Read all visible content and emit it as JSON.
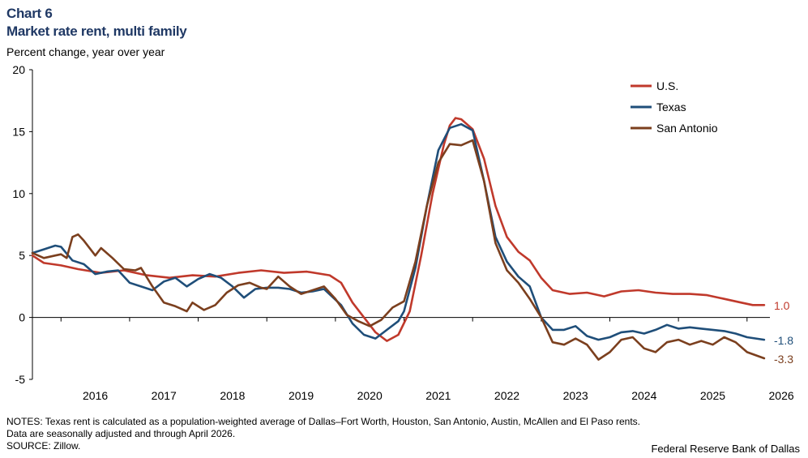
{
  "header": {
    "chart_number": "Chart 6",
    "title": "Market rate rent, multi family",
    "subtitle": "Percent change, year over year"
  },
  "footer": {
    "notes_line1": "NOTES: Texas rent is calculated as a population-weighted average of Dallas–Fort Worth, Houston, San Antonio, Austin, McAllen and El Paso rents.",
    "notes_line2": "Data are seasonally adjusted and through April 2026.",
    "source": "SOURCE: Zillow.",
    "credit": "Federal Reserve Bank of Dallas"
  },
  "chart_data": {
    "type": "line",
    "title": "Market rate rent, multi family",
    "ylabel": "Percent change, year over year",
    "xlabel": "",
    "ylim": [
      -5,
      20
    ],
    "yticks": [
      -5,
      0,
      5,
      10,
      15,
      20
    ],
    "xlim": [
      "2015-08",
      "2026-05"
    ],
    "xtick_labels": [
      "2016",
      "2017",
      "2018",
      "2019",
      "2020",
      "2021",
      "2022",
      "2023",
      "2024",
      "2025",
      "2026"
    ],
    "grid": false,
    "legend_position": "top-right",
    "series": [
      {
        "name": "U.S.",
        "color": "#c0392b",
        "end_label": "1.0",
        "points": [
          [
            "2015-08",
            5.0
          ],
          [
            "2015-10",
            4.4
          ],
          [
            "2016-01",
            4.2
          ],
          [
            "2016-04",
            3.9
          ],
          [
            "2016-08",
            3.6
          ],
          [
            "2016-12",
            3.8
          ],
          [
            "2017-04",
            3.4
          ],
          [
            "2017-08",
            3.2
          ],
          [
            "2017-12",
            3.4
          ],
          [
            "2018-04",
            3.3
          ],
          [
            "2018-08",
            3.6
          ],
          [
            "2018-12",
            3.8
          ],
          [
            "2019-04",
            3.6
          ],
          [
            "2019-08",
            3.7
          ],
          [
            "2019-12",
            3.4
          ],
          [
            "2020-02",
            2.8
          ],
          [
            "2020-04",
            1.2
          ],
          [
            "2020-06",
            0.0
          ],
          [
            "2020-08",
            -1.2
          ],
          [
            "2020-10",
            -1.9
          ],
          [
            "2020-12",
            -1.4
          ],
          [
            "2021-02",
            0.5
          ],
          [
            "2021-04",
            5.0
          ],
          [
            "2021-06",
            10.0
          ],
          [
            "2021-08",
            14.0
          ],
          [
            "2021-09",
            15.5
          ],
          [
            "2021-10",
            16.1
          ],
          [
            "2021-11",
            16.0
          ],
          [
            "2022-01",
            15.2
          ],
          [
            "2022-03",
            12.8
          ],
          [
            "2022-05",
            9.0
          ],
          [
            "2022-07",
            6.5
          ],
          [
            "2022-09",
            5.3
          ],
          [
            "2022-11",
            4.6
          ],
          [
            "2023-01",
            3.2
          ],
          [
            "2023-03",
            2.2
          ],
          [
            "2023-06",
            1.9
          ],
          [
            "2023-09",
            2.0
          ],
          [
            "2023-12",
            1.7
          ],
          [
            "2024-03",
            2.1
          ],
          [
            "2024-06",
            2.2
          ],
          [
            "2024-09",
            2.0
          ],
          [
            "2024-12",
            1.9
          ],
          [
            "2025-03",
            1.9
          ],
          [
            "2025-06",
            1.8
          ],
          [
            "2025-09",
            1.5
          ],
          [
            "2025-12",
            1.2
          ],
          [
            "2026-02",
            1.0
          ],
          [
            "2026-04",
            1.0
          ]
        ]
      },
      {
        "name": "Texas",
        "color": "#1f4e79",
        "end_label": "-1.8",
        "points": [
          [
            "2015-08",
            5.2
          ],
          [
            "2015-10",
            5.5
          ],
          [
            "2015-12",
            5.8
          ],
          [
            "2016-01",
            5.7
          ],
          [
            "2016-03",
            4.6
          ],
          [
            "2016-05",
            4.3
          ],
          [
            "2016-07",
            3.5
          ],
          [
            "2016-09",
            3.7
          ],
          [
            "2016-11",
            3.8
          ],
          [
            "2017-01",
            2.8
          ],
          [
            "2017-03",
            2.5
          ],
          [
            "2017-05",
            2.2
          ],
          [
            "2017-07",
            2.9
          ],
          [
            "2017-09",
            3.2
          ],
          [
            "2017-11",
            2.5
          ],
          [
            "2018-01",
            3.1
          ],
          [
            "2018-03",
            3.5
          ],
          [
            "2018-05",
            3.2
          ],
          [
            "2018-07",
            2.5
          ],
          [
            "2018-09",
            1.6
          ],
          [
            "2018-11",
            2.3
          ],
          [
            "2019-01",
            2.4
          ],
          [
            "2019-03",
            2.4
          ],
          [
            "2019-05",
            2.3
          ],
          [
            "2019-07",
            2.0
          ],
          [
            "2019-09",
            2.1
          ],
          [
            "2019-11",
            2.3
          ],
          [
            "2020-02",
            1.0
          ],
          [
            "2020-04",
            -0.5
          ],
          [
            "2020-06",
            -1.4
          ],
          [
            "2020-08",
            -1.7
          ],
          [
            "2020-10",
            -1.0
          ],
          [
            "2020-12",
            -0.3
          ],
          [
            "2021-01",
            0.5
          ],
          [
            "2021-03",
            4.0
          ],
          [
            "2021-05",
            9.0
          ],
          [
            "2021-07",
            13.5
          ],
          [
            "2021-09",
            15.3
          ],
          [
            "2021-11",
            15.6
          ],
          [
            "2022-01",
            15.1
          ],
          [
            "2022-03",
            11.0
          ],
          [
            "2022-05",
            6.5
          ],
          [
            "2022-07",
            4.5
          ],
          [
            "2022-09",
            3.3
          ],
          [
            "2022-11",
            2.5
          ],
          [
            "2023-01",
            0.0
          ],
          [
            "2023-03",
            -1.0
          ],
          [
            "2023-05",
            -1.0
          ],
          [
            "2023-07",
            -0.7
          ],
          [
            "2023-09",
            -1.5
          ],
          [
            "2023-11",
            -1.8
          ],
          [
            "2024-01",
            -1.6
          ],
          [
            "2024-03",
            -1.2
          ],
          [
            "2024-05",
            -1.1
          ],
          [
            "2024-07",
            -1.3
          ],
          [
            "2024-09",
            -1.0
          ],
          [
            "2024-11",
            -0.6
          ],
          [
            "2025-01",
            -0.9
          ],
          [
            "2025-03",
            -0.8
          ],
          [
            "2025-05",
            -0.9
          ],
          [
            "2025-07",
            -1.0
          ],
          [
            "2025-09",
            -1.1
          ],
          [
            "2025-11",
            -1.3
          ],
          [
            "2026-01",
            -1.6
          ],
          [
            "2026-04",
            -1.8
          ]
        ]
      },
      {
        "name": "San Antonio",
        "color": "#7b3f1e",
        "end_label": "-3.3",
        "points": [
          [
            "2015-08",
            5.2
          ],
          [
            "2015-10",
            4.8
          ],
          [
            "2015-12",
            5.0
          ],
          [
            "2016-01",
            5.1
          ],
          [
            "2016-02",
            4.8
          ],
          [
            "2016-03",
            6.5
          ],
          [
            "2016-04",
            6.7
          ],
          [
            "2016-05",
            6.2
          ],
          [
            "2016-07",
            5.0
          ],
          [
            "2016-08",
            5.6
          ],
          [
            "2016-10",
            4.8
          ],
          [
            "2016-12",
            3.9
          ],
          [
            "2017-02",
            3.8
          ],
          [
            "2017-03",
            4.0
          ],
          [
            "2017-05",
            2.5
          ],
          [
            "2017-07",
            1.2
          ],
          [
            "2017-09",
            0.9
          ],
          [
            "2017-11",
            0.5
          ],
          [
            "2017-12",
            1.2
          ],
          [
            "2018-02",
            0.6
          ],
          [
            "2018-04",
            1.0
          ],
          [
            "2018-06",
            2.0
          ],
          [
            "2018-08",
            2.6
          ],
          [
            "2018-10",
            2.8
          ],
          [
            "2018-12",
            2.4
          ],
          [
            "2019-01",
            2.3
          ],
          [
            "2019-03",
            3.3
          ],
          [
            "2019-05",
            2.5
          ],
          [
            "2019-07",
            1.9
          ],
          [
            "2019-09",
            2.2
          ],
          [
            "2019-11",
            2.5
          ],
          [
            "2020-01",
            1.5
          ],
          [
            "2020-03",
            0.2
          ],
          [
            "2020-05",
            -0.3
          ],
          [
            "2020-07",
            -0.7
          ],
          [
            "2020-09",
            -0.2
          ],
          [
            "2020-11",
            0.8
          ],
          [
            "2021-01",
            1.3
          ],
          [
            "2021-03",
            4.5
          ],
          [
            "2021-05",
            9.0
          ],
          [
            "2021-07",
            12.5
          ],
          [
            "2021-09",
            14.0
          ],
          [
            "2021-11",
            13.9
          ],
          [
            "2022-01",
            14.3
          ],
          [
            "2022-03",
            11.0
          ],
          [
            "2022-05",
            6.0
          ],
          [
            "2022-07",
            3.8
          ],
          [
            "2022-09",
            2.8
          ],
          [
            "2022-11",
            1.5
          ],
          [
            "2023-01",
            0.0
          ],
          [
            "2023-03",
            -2.0
          ],
          [
            "2023-05",
            -2.2
          ],
          [
            "2023-07",
            -1.7
          ],
          [
            "2023-09",
            -2.2
          ],
          [
            "2023-11",
            -3.4
          ],
          [
            "2024-01",
            -2.8
          ],
          [
            "2024-03",
            -1.8
          ],
          [
            "2024-05",
            -1.6
          ],
          [
            "2024-07",
            -2.5
          ],
          [
            "2024-09",
            -2.8
          ],
          [
            "2024-11",
            -2.0
          ],
          [
            "2025-01",
            -1.8
          ],
          [
            "2025-03",
            -2.2
          ],
          [
            "2025-05",
            -1.9
          ],
          [
            "2025-07",
            -2.2
          ],
          [
            "2025-09",
            -1.6
          ],
          [
            "2025-11",
            -2.0
          ],
          [
            "2026-01",
            -2.8
          ],
          [
            "2026-04",
            -3.3
          ]
        ]
      }
    ]
  }
}
